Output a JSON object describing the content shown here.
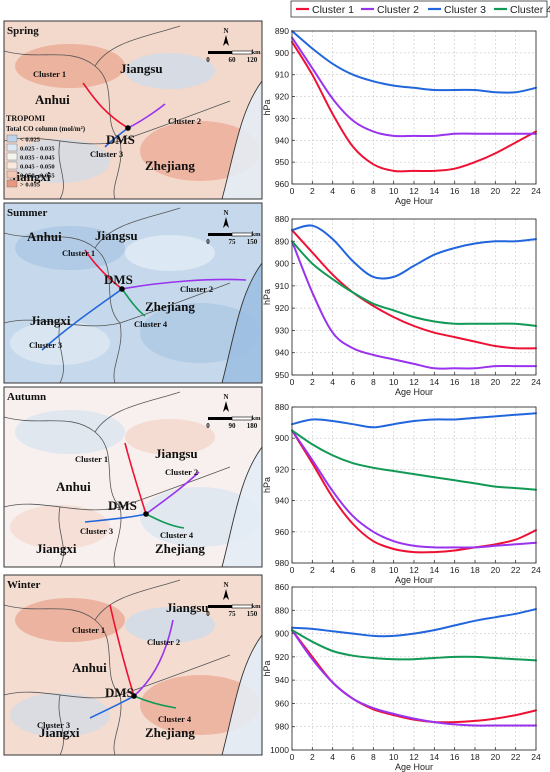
{
  "legend": [
    {
      "name": "Cluster 1",
      "color": "#ee1133"
    },
    {
      "name": "Cluster 2",
      "color": "#9933ee"
    },
    {
      "name": "Cluster 3",
      "color": "#2266dd"
    },
    {
      "name": "Cluster 4",
      "color": "#119955"
    }
  ],
  "maps": [
    {
      "season": "Spring",
      "base_color": "#f3d9cc",
      "provinces": {
        "anhui": "Anhui",
        "jiangsu": "Jiangsu",
        "jiangxi": "Jiangxi",
        "zhejiang": "Zhejiang"
      },
      "site": "DMS",
      "cluster_labels": [
        "Cluster 1",
        "Cluster 2",
        "Cluster 3"
      ],
      "scale": [
        "0",
        "60",
        "120",
        "km"
      ],
      "north": "N",
      "colorbar": {
        "title": "TROPOMI",
        "subtitle": "Total CO column (mol/m²)",
        "items": [
          "< 0.025",
          "0.025 - 0.035",
          "0.035 - 0.045",
          "0.045 - 0.050",
          "0.050 - 0.055",
          "> 0.055"
        ],
        "colors": [
          "#bcd3ea",
          "#dde8f3",
          "#f5f5f0",
          "#fbe9dd",
          "#f3c7b4",
          "#e79880"
        ]
      }
    },
    {
      "season": "Summer",
      "base_color": "#c6d9ec",
      "provinces": {
        "anhui": "Anhui",
        "jiangsu": "Jiangsu",
        "jiangxi": "Jiangxi",
        "zhejiang": "Zhejiang"
      },
      "site": "DMS",
      "cluster_labels": [
        "Cluster 1",
        "Cluster 2",
        "Cluster 3",
        "Cluster 4"
      ],
      "scale": [
        "0",
        "75",
        "150",
        "km"
      ],
      "north": "N"
    },
    {
      "season": "Autumn",
      "base_color": "#f7f0ee",
      "provinces": {
        "anhui": "Anhui",
        "jiangsu": "Jiangsu",
        "jiangxi": "Jiangxi",
        "zhejiang": "Zhejiang"
      },
      "site": "DMS",
      "cluster_labels": [
        "Cluster 1",
        "Cluster 2",
        "Cluster 3",
        "Cluster 4"
      ],
      "scale": [
        "0",
        "90",
        "180",
        "km"
      ],
      "north": "N"
    },
    {
      "season": "Winter",
      "base_color": "#f4dcd0",
      "provinces": {
        "anhui": "Anhui",
        "jiangsu": "Jiangsu",
        "jiangxi": "Jiangxi",
        "zhejiang": "Zhejiang"
      },
      "site": "DMS",
      "cluster_labels": [
        "Cluster 1",
        "Cluster 2",
        "Cluster 3",
        "Cluster 4"
      ],
      "scale": [
        "0",
        "75",
        "150",
        "km"
      ],
      "north": "N"
    }
  ],
  "chart_data": [
    {
      "type": "line",
      "xlabel": "Age Hour",
      "ylabel": "hPa",
      "x": [
        0,
        2,
        4,
        6,
        8,
        10,
        12,
        14,
        16,
        18,
        20,
        22,
        24
      ],
      "xlim": [
        0,
        24
      ],
      "ylim": [
        960,
        890
      ],
      "yticks": [
        890,
        900,
        910,
        920,
        930,
        940,
        950,
        960
      ],
      "xticks": [
        0,
        2,
        4,
        6,
        8,
        10,
        12,
        14,
        16,
        18,
        20,
        22,
        24
      ],
      "series": [
        {
          "name": "Cluster 1",
          "values": [
            895,
            910,
            928,
            943,
            951,
            954,
            954,
            954,
            953,
            950,
            946,
            941,
            936
          ]
        },
        {
          "name": "Cluster 2",
          "values": [
            893,
            907,
            921,
            931,
            936,
            938,
            938,
            938,
            937,
            937,
            937,
            937,
            937
          ]
        },
        {
          "name": "Cluster 3",
          "values": [
            890,
            898,
            905,
            910,
            913,
            915,
            916,
            917,
            917,
            917,
            918,
            918,
            916
          ]
        }
      ]
    },
    {
      "type": "line",
      "xlabel": "Age Hour",
      "ylabel": "hPa",
      "x": [
        0,
        2,
        4,
        6,
        8,
        10,
        12,
        14,
        16,
        18,
        20,
        22,
        24
      ],
      "xlim": [
        0,
        24
      ],
      "ylim": [
        950,
        880
      ],
      "yticks": [
        880,
        890,
        900,
        910,
        920,
        930,
        940,
        950
      ],
      "xticks": [
        0,
        2,
        4,
        6,
        8,
        10,
        12,
        14,
        16,
        18,
        20,
        22,
        24
      ],
      "series": [
        {
          "name": "Cluster 1",
          "values": [
            885,
            895,
            905,
            913,
            919,
            924,
            928,
            931,
            933,
            935,
            937,
            938,
            938
          ]
        },
        {
          "name": "Cluster 2",
          "values": [
            890,
            913,
            931,
            938,
            941,
            943,
            945,
            947,
            947,
            947,
            946,
            946,
            946
          ]
        },
        {
          "name": "Cluster 3",
          "values": [
            885,
            883,
            889,
            899,
            906,
            906,
            901,
            896,
            893,
            891,
            890,
            890,
            889
          ]
        },
        {
          "name": "Cluster 4",
          "values": [
            890,
            900,
            907,
            913,
            918,
            921,
            924,
            926,
            927,
            927,
            927,
            927,
            928
          ]
        }
      ]
    },
    {
      "type": "line",
      "xlabel": "Age Hour",
      "ylabel": "hPa",
      "x": [
        0,
        2,
        4,
        6,
        8,
        10,
        12,
        14,
        16,
        18,
        20,
        22,
        24
      ],
      "xlim": [
        0,
        24
      ],
      "ylim": [
        980,
        880
      ],
      "yticks": [
        880,
        900,
        920,
        940,
        960,
        980
      ],
      "xticks": [
        0,
        2,
        4,
        6,
        8,
        10,
        12,
        14,
        16,
        18,
        20,
        22,
        24
      ],
      "series": [
        {
          "name": "Cluster 1",
          "values": [
            895,
            916,
            938,
            955,
            966,
            971,
            973,
            973,
            972,
            970,
            968,
            965,
            959
          ]
        },
        {
          "name": "Cluster 2",
          "values": [
            895,
            914,
            934,
            950,
            960,
            966,
            969,
            970,
            970,
            970,
            969,
            968,
            967
          ]
        },
        {
          "name": "Cluster 3",
          "values": [
            891,
            888,
            889,
            891,
            893,
            891,
            889,
            888,
            888,
            887,
            886,
            885,
            884
          ]
        },
        {
          "name": "Cluster 4",
          "values": [
            895,
            904,
            911,
            916,
            919,
            921,
            923,
            925,
            927,
            929,
            931,
            932,
            933
          ]
        }
      ]
    },
    {
      "type": "line",
      "xlabel": "Age Hour",
      "ylabel": "hPa",
      "x": [
        0,
        2,
        4,
        6,
        8,
        10,
        12,
        14,
        16,
        18,
        20,
        22,
        24
      ],
      "xlim": [
        0,
        24
      ],
      "ylim": [
        1000,
        860
      ],
      "yticks": [
        860,
        880,
        900,
        920,
        940,
        960,
        980,
        1000
      ],
      "xticks": [
        0,
        2,
        4,
        6,
        8,
        10,
        12,
        14,
        16,
        18,
        20,
        22,
        24
      ],
      "series": [
        {
          "name": "Cluster 1",
          "values": [
            897,
            920,
            942,
            956,
            965,
            970,
            974,
            976,
            976,
            975,
            973,
            970,
            966
          ]
        },
        {
          "name": "Cluster 2",
          "values": [
            897,
            922,
            942,
            956,
            964,
            969,
            973,
            976,
            978,
            979,
            979,
            979,
            979
          ]
        },
        {
          "name": "Cluster 3",
          "values": [
            895,
            896,
            898,
            900,
            902,
            902,
            900,
            897,
            893,
            889,
            886,
            883,
            879
          ]
        },
        {
          "name": "Cluster 4",
          "values": [
            897,
            907,
            915,
            919,
            921,
            922,
            922,
            921,
            920,
            920,
            921,
            922,
            923
          ]
        }
      ]
    }
  ]
}
